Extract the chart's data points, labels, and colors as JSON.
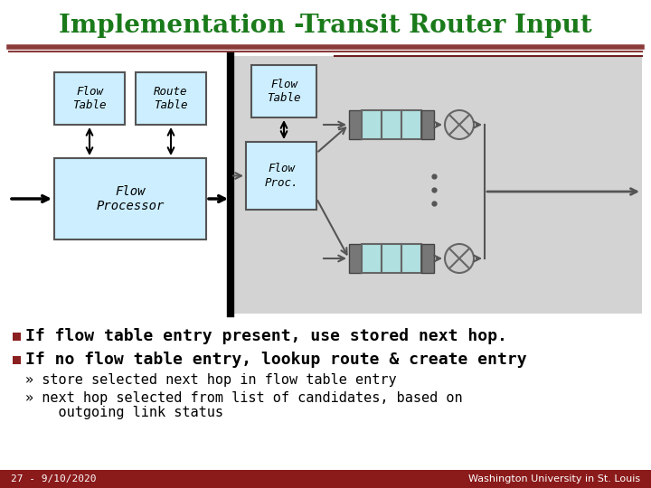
{
  "title": "Implementation -Transit Router Input",
  "title_color": "#1a7a1a",
  "title_fontsize": 20,
  "bg_color": "#ffffff",
  "header_line_color1": "#8b3a3a",
  "header_line_color2": "#6b2020",
  "diagram_bg": "#d3d3d3",
  "box_fill": "#cceeff",
  "box_edge": "#555555",
  "queue_fill": "#b0e0e0",
  "queue_cap": "#777777",
  "bullet_color": "#8b2020",
  "bullet1": "If flow table entry present, use stored next hop.",
  "bullet2": "If no flow table entry, lookup route & create entry",
  "sub1": "» store selected next hop in flow table entry",
  "sub2": "» next hop selected from list of candidates, based on",
  "sub3": "    outgoing link status",
  "footer_bg": "#8b1a1a",
  "footer_text": "27 - 9/10/2020",
  "footer_wustl": "Washington University in St. Louis",
  "arrow_color": "#555555",
  "black": "#000000",
  "dark_arrow": "#222222"
}
